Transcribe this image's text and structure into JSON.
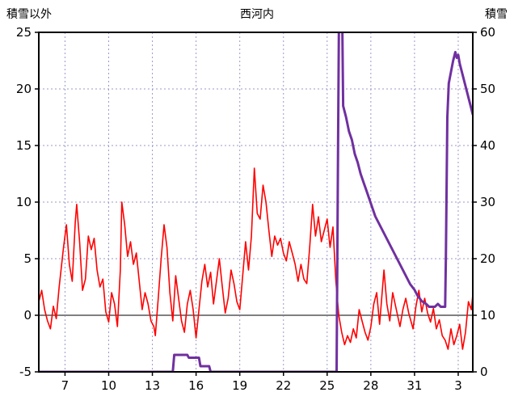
{
  "header": {
    "left_axis_title": "積雪以外",
    "chart_title": "西河内",
    "right_axis_title": "積雪"
  },
  "chart_data": {
    "type": "line",
    "title": "西河内",
    "grid": true,
    "legend": "none",
    "colors": {
      "grid": "#9a9ac8",
      "zero_line": "#808080",
      "border": "#000000",
      "temperature": "#ff0000",
      "snow_depth": "#7030a0"
    },
    "x_axis": {
      "label": "day of month",
      "min": 5.2,
      "max": 35.0,
      "ticks": [
        7,
        10,
        13,
        16,
        19,
        22,
        25,
        28,
        31,
        34
      ],
      "tick_labels": [
        "7",
        "10",
        "13",
        "16",
        "19",
        "22",
        "25",
        "28",
        "31",
        "3"
      ]
    },
    "left_axis": {
      "label": "積雪以外",
      "min": -5,
      "max": 25,
      "ticks": [
        -5,
        0,
        5,
        10,
        15,
        20,
        25
      ]
    },
    "right_axis": {
      "label": "積雪",
      "min": 0,
      "max": 60,
      "ticks": [
        0,
        10,
        20,
        30,
        40,
        50,
        60
      ]
    },
    "series": [
      {
        "name": "temperature",
        "axis": "left",
        "color": "#ff0000",
        "points": [
          [
            5.2,
            1.2
          ],
          [
            5.4,
            2.2
          ],
          [
            5.6,
            0.5
          ],
          [
            5.8,
            -0.5
          ],
          [
            6.0,
            -1.2
          ],
          [
            6.2,
            0.8
          ],
          [
            6.4,
            -0.3
          ],
          [
            6.6,
            2.5
          ],
          [
            6.9,
            6.0
          ],
          [
            7.1,
            8.0
          ],
          [
            7.3,
            4.5
          ],
          [
            7.5,
            3.0
          ],
          [
            7.7,
            8.2
          ],
          [
            7.8,
            9.8
          ],
          [
            8.0,
            6.5
          ],
          [
            8.2,
            2.2
          ],
          [
            8.4,
            3.2
          ],
          [
            8.6,
            7.0
          ],
          [
            8.8,
            5.8
          ],
          [
            9.0,
            6.8
          ],
          [
            9.2,
            4.0
          ],
          [
            9.4,
            2.5
          ],
          [
            9.6,
            3.2
          ],
          [
            9.8,
            0.3
          ],
          [
            10.0,
            -0.6
          ],
          [
            10.2,
            2.0
          ],
          [
            10.4,
            1.0
          ],
          [
            10.6,
            -1.0
          ],
          [
            10.8,
            4.0
          ],
          [
            10.9,
            10.0
          ],
          [
            11.1,
            8.0
          ],
          [
            11.3,
            5.2
          ],
          [
            11.5,
            6.5
          ],
          [
            11.7,
            4.5
          ],
          [
            11.9,
            5.5
          ],
          [
            12.1,
            3.0
          ],
          [
            12.3,
            0.5
          ],
          [
            12.5,
            2.0
          ],
          [
            12.7,
            1.0
          ],
          [
            12.9,
            -0.5
          ],
          [
            13.1,
            -1.0
          ],
          [
            13.2,
            -1.8
          ],
          [
            13.4,
            1.5
          ],
          [
            13.6,
            5.0
          ],
          [
            13.8,
            8.0
          ],
          [
            14.0,
            6.0
          ],
          [
            14.2,
            2.0
          ],
          [
            14.4,
            -0.5
          ],
          [
            14.6,
            3.5
          ],
          [
            14.8,
            1.5
          ],
          [
            15.0,
            -0.5
          ],
          [
            15.2,
            -1.5
          ],
          [
            15.4,
            1.0
          ],
          [
            15.6,
            2.2
          ],
          [
            15.8,
            0.5
          ],
          [
            16.0,
            -2.0
          ],
          [
            16.2,
            0.5
          ],
          [
            16.4,
            3.0
          ],
          [
            16.6,
            4.5
          ],
          [
            16.8,
            2.5
          ],
          [
            17.0,
            3.8
          ],
          [
            17.2,
            1.0
          ],
          [
            17.4,
            3.0
          ],
          [
            17.6,
            5.0
          ],
          [
            17.8,
            2.5
          ],
          [
            18.0,
            0.2
          ],
          [
            18.2,
            1.5
          ],
          [
            18.4,
            4.0
          ],
          [
            18.6,
            2.8
          ],
          [
            18.8,
            1.2
          ],
          [
            19.0,
            0.5
          ],
          [
            19.2,
            3.5
          ],
          [
            19.4,
            6.5
          ],
          [
            19.6,
            4.0
          ],
          [
            19.8,
            7.0
          ],
          [
            20.0,
            13.0
          ],
          [
            20.2,
            9.0
          ],
          [
            20.4,
            8.5
          ],
          [
            20.6,
            11.5
          ],
          [
            20.8,
            10.0
          ],
          [
            21.0,
            7.5
          ],
          [
            21.2,
            5.2
          ],
          [
            21.4,
            7.0
          ],
          [
            21.6,
            6.2
          ],
          [
            21.8,
            6.8
          ],
          [
            22.0,
            5.5
          ],
          [
            22.2,
            4.8
          ],
          [
            22.4,
            6.5
          ],
          [
            22.6,
            5.5
          ],
          [
            22.8,
            4.5
          ],
          [
            23.0,
            3.0
          ],
          [
            23.2,
            4.5
          ],
          [
            23.4,
            3.2
          ],
          [
            23.6,
            2.8
          ],
          [
            23.8,
            6.0
          ],
          [
            24.0,
            9.8
          ],
          [
            24.2,
            7.0
          ],
          [
            24.4,
            8.7
          ],
          [
            24.6,
            6.5
          ],
          [
            24.8,
            7.5
          ],
          [
            25.0,
            8.5
          ],
          [
            25.2,
            6.0
          ],
          [
            25.4,
            7.8
          ],
          [
            25.6,
            3.0
          ],
          [
            25.8,
            0.0
          ],
          [
            26.0,
            -1.5
          ],
          [
            26.2,
            -2.6
          ],
          [
            26.4,
            -1.8
          ],
          [
            26.6,
            -2.4
          ],
          [
            26.8,
            -1.2
          ],
          [
            27.0,
            -2.0
          ],
          [
            27.2,
            0.5
          ],
          [
            27.4,
            -0.5
          ],
          [
            27.6,
            -1.5
          ],
          [
            27.8,
            -2.2
          ],
          [
            28.0,
            -1.0
          ],
          [
            28.2,
            1.0
          ],
          [
            28.4,
            2.0
          ],
          [
            28.6,
            -0.8
          ],
          [
            28.9,
            4.0
          ],
          [
            29.1,
            1.0
          ],
          [
            29.3,
            -0.5
          ],
          [
            29.5,
            2.0
          ],
          [
            29.7,
            0.8
          ],
          [
            30.0,
            -1.0
          ],
          [
            30.2,
            0.5
          ],
          [
            30.4,
            1.5
          ],
          [
            30.6,
            0.2
          ],
          [
            30.9,
            -1.2
          ],
          [
            31.1,
            0.8
          ],
          [
            31.3,
            2.2
          ],
          [
            31.5,
            0.3
          ],
          [
            31.7,
            1.5
          ],
          [
            31.9,
            0.2
          ],
          [
            32.1,
            -0.6
          ],
          [
            32.3,
            0.6
          ],
          [
            32.5,
            -1.2
          ],
          [
            32.7,
            -0.4
          ],
          [
            32.9,
            -1.8
          ],
          [
            33.1,
            -2.2
          ],
          [
            33.3,
            -3.0
          ],
          [
            33.5,
            -1.2
          ],
          [
            33.7,
            -2.6
          ],
          [
            33.9,
            -1.8
          ],
          [
            34.1,
            -0.8
          ],
          [
            34.3,
            -3.0
          ],
          [
            34.5,
            -1.5
          ],
          [
            34.7,
            1.2
          ],
          [
            34.9,
            0.5
          ],
          [
            35.0,
            1.8
          ]
        ]
      },
      {
        "name": "snow_depth",
        "axis": "right",
        "color": "#7030a0",
        "points": [
          [
            5.2,
            0
          ],
          [
            14.4,
            0
          ],
          [
            14.5,
            3
          ],
          [
            15.4,
            3
          ],
          [
            15.5,
            2.5
          ],
          [
            16.2,
            2.5
          ],
          [
            16.3,
            1
          ],
          [
            16.9,
            1
          ],
          [
            17.0,
            0
          ],
          [
            25.65,
            0
          ],
          [
            25.75,
            40
          ],
          [
            25.82,
            66
          ],
          [
            26.02,
            66
          ],
          [
            26.1,
            47
          ],
          [
            26.3,
            45
          ],
          [
            26.5,
            42.5
          ],
          [
            26.7,
            41
          ],
          [
            26.9,
            38.5
          ],
          [
            27.1,
            37
          ],
          [
            27.3,
            35
          ],
          [
            27.5,
            33.5
          ],
          [
            27.7,
            32
          ],
          [
            27.9,
            30.5
          ],
          [
            28.1,
            29
          ],
          [
            28.3,
            27.5
          ],
          [
            28.5,
            26.5
          ],
          [
            28.7,
            25.5
          ],
          [
            28.9,
            24.5
          ],
          [
            29.1,
            23.5
          ],
          [
            29.3,
            22.5
          ],
          [
            29.5,
            21.5
          ],
          [
            29.7,
            20.5
          ],
          [
            30.0,
            19
          ],
          [
            30.2,
            18
          ],
          [
            30.5,
            16.5
          ],
          [
            30.7,
            15.5
          ],
          [
            31.0,
            14.5
          ],
          [
            31.2,
            13.5
          ],
          [
            31.5,
            12.5
          ],
          [
            31.8,
            12
          ],
          [
            32.0,
            11.5
          ],
          [
            32.4,
            11.5
          ],
          [
            32.6,
            12
          ],
          [
            32.8,
            11.5
          ],
          [
            33.1,
            11.5
          ],
          [
            33.15,
            20
          ],
          [
            33.25,
            45
          ],
          [
            33.35,
            51
          ],
          [
            33.5,
            53
          ],
          [
            33.65,
            55
          ],
          [
            33.8,
            56.5
          ],
          [
            33.9,
            55.5
          ],
          [
            34.0,
            56
          ],
          [
            34.1,
            54.5
          ],
          [
            34.3,
            52.5
          ],
          [
            34.5,
            50.5
          ],
          [
            34.7,
            48.5
          ],
          [
            34.9,
            46.5
          ],
          [
            35.0,
            45.5
          ]
        ]
      }
    ]
  }
}
